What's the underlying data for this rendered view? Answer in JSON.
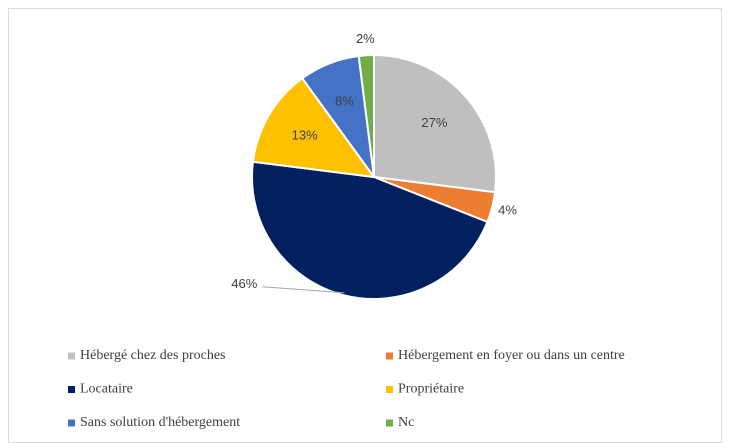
{
  "chart_data": {
    "type": "pie",
    "categories": [
      "Hébergé chez des proches",
      "Hébergement en foyer ou dans un centre",
      "Locataire",
      "Propriétaire",
      "Sans solution d'hébergement",
      "Nc"
    ],
    "values": [
      27,
      4,
      46,
      13,
      8,
      2
    ],
    "value_labels": [
      "27%",
      "4%",
      "46%",
      "13%",
      "8%",
      "2%"
    ],
    "colors": [
      "#bfbfbf",
      "#ed7d31",
      "#002060",
      "#ffc000",
      "#4472c4",
      "#70ad47"
    ],
    "label_positions": [
      "inside",
      "outside",
      "outside",
      "inside",
      "inside",
      "outside"
    ],
    "legend": "bottom"
  }
}
